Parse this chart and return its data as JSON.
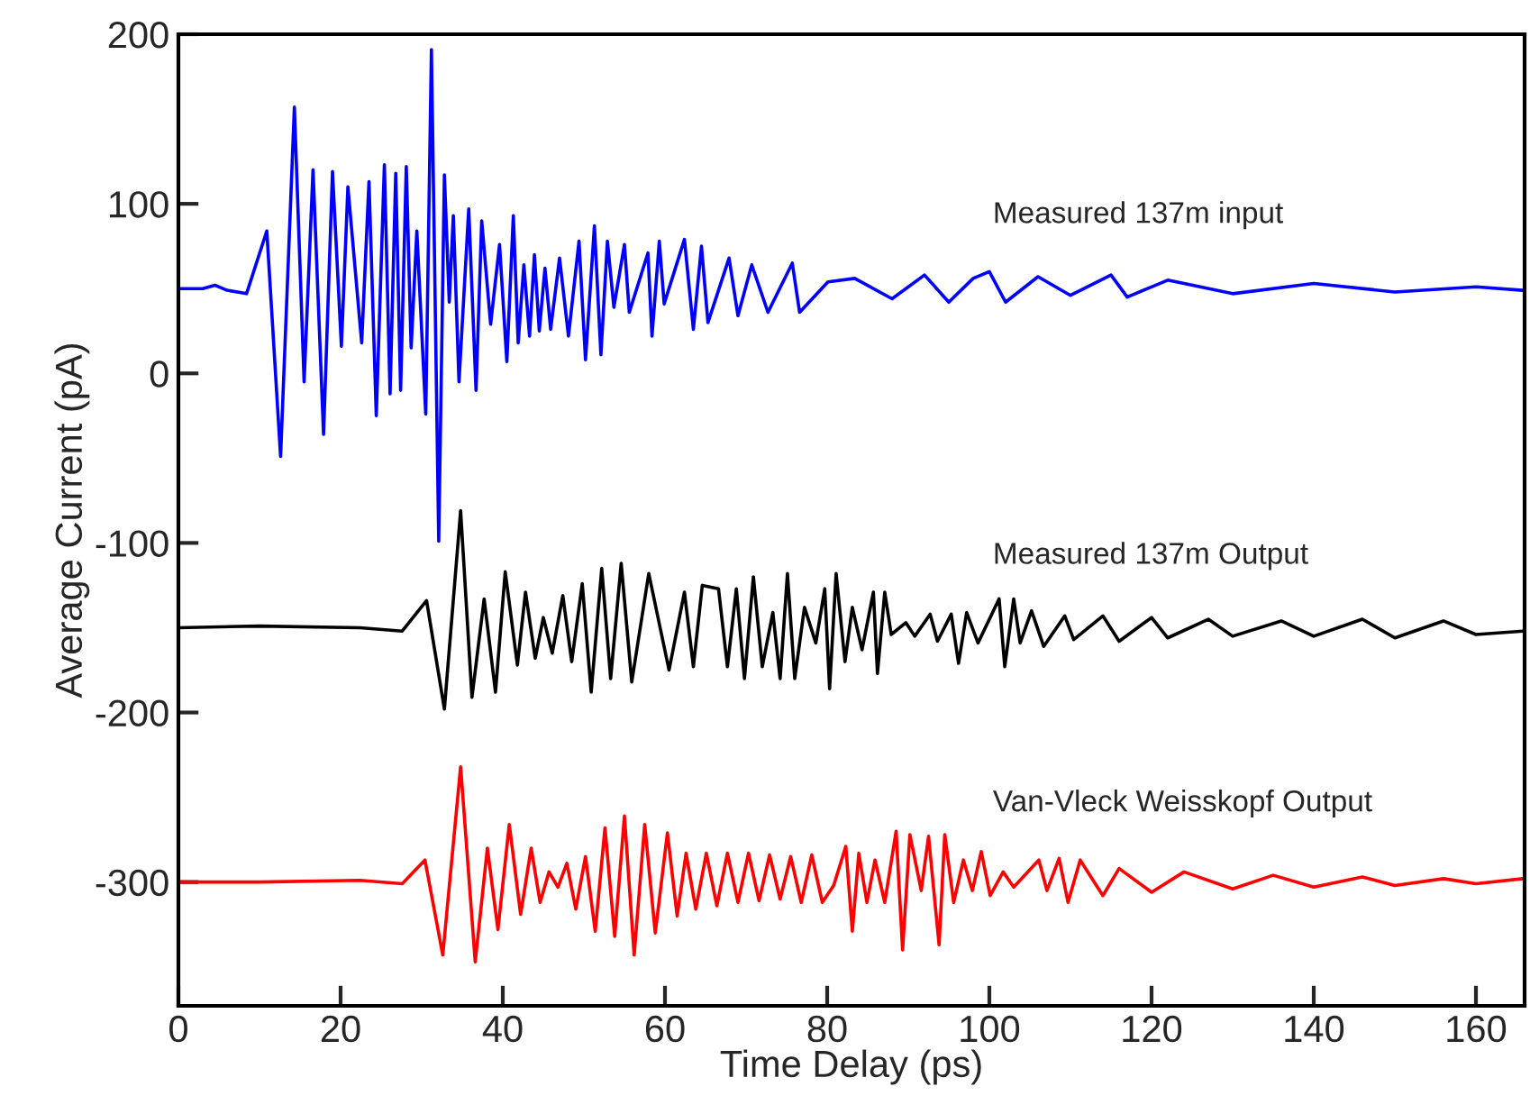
{
  "chart_data": {
    "type": "line",
    "xlabel": "Time Delay (ps)",
    "ylabel": "Average Current (pA)",
    "xlim": [
      0,
      166
    ],
    "ylim": [
      -373,
      200
    ],
    "xticks": [
      0,
      20,
      40,
      60,
      80,
      100,
      120,
      140,
      160
    ],
    "yticks": [
      -300,
      -200,
      -100,
      0,
      100,
      200
    ],
    "grid": false,
    "legend": false,
    "series": [
      {
        "name": "Measured 137m input",
        "color": "#0000ff",
        "x": [
          0.2,
          3,
          4.5,
          6,
          8.4,
          10.9,
          12.6,
          14.3,
          15.5,
          16.6,
          17.9,
          19.0,
          20.1,
          20.9,
          22.6,
          23.5,
          24.4,
          25.4,
          26.1,
          26.8,
          27.4,
          28.1,
          28.7,
          29.4,
          30.5,
          31.2,
          32.1,
          32.8,
          33.4,
          33.9,
          34.6,
          35.8,
          36.7,
          37.4,
          38.5,
          39.6,
          40.5,
          41.3,
          41.9,
          42.6,
          43.3,
          43.9,
          44.5,
          45.2,
          45.9,
          47.0,
          48.1,
          49.4,
          50.2,
          51.3,
          52.1,
          52.9,
          53.7,
          55.0,
          55.6,
          57.9,
          58.4,
          59.3,
          59.9,
          62.4,
          63.5,
          64.5,
          65.3,
          67.9,
          69.0,
          70.7,
          72.7,
          75.7,
          76.6,
          80.1,
          83.4,
          88,
          92,
          95,
          98,
          100,
          102,
          106,
          110,
          115,
          117,
          122,
          130,
          140,
          150,
          160,
          165.8
        ],
        "values": [
          50,
          50,
          52,
          49,
          47,
          84,
          -49,
          157,
          -5,
          120,
          -36,
          119,
          16,
          110,
          18,
          113,
          -25,
          123,
          -12,
          118,
          -10,
          122,
          15,
          84,
          -24,
          191,
          -99,
          117,
          42,
          93,
          -5,
          97,
          -10,
          90,
          29,
          76,
          7,
          93,
          18,
          64,
          22,
          70,
          25,
          62,
          26,
          68,
          22,
          78,
          8,
          87,
          11,
          78,
          39,
          76,
          36,
          71,
          22,
          78,
          41,
          79,
          26,
          75,
          30,
          68,
          34,
          64,
          36,
          65,
          36,
          54,
          56,
          44,
          58,
          42,
          56,
          60,
          42,
          57,
          46,
          58,
          45,
          55,
          47,
          53,
          48,
          51,
          49
        ]
      },
      {
        "name": "Measured 137m Output",
        "color": "#000000",
        "x": [
          0,
          10,
          22.4,
          27.6,
          30.6,
          32.8,
          34.8,
          36.2,
          37.7,
          39.1,
          40.3,
          41.8,
          42.8,
          44.0,
          45.0,
          46.1,
          47.4,
          48.5,
          49.8,
          50.9,
          52.2,
          53.3,
          54.6,
          55.9,
          58.0,
          60.5,
          62.4,
          63.5,
          64.6,
          66.6,
          67.7,
          68.8,
          69.8,
          70.9,
          72.0,
          73.3,
          74.2,
          75.1,
          76.0,
          77.2,
          78.6,
          79.7,
          80.3,
          81.1,
          82.2,
          83.1,
          84.3,
          85.7,
          86.2,
          87.1,
          87.9,
          89.7,
          90.8,
          92.7,
          93.6,
          95.3,
          96.2,
          97.2,
          98.6,
          101.2,
          101.9,
          103.0,
          103.8,
          105.2,
          106.7,
          109.3,
          110.4,
          114,
          116,
          120,
          122,
          127,
          130,
          136,
          140,
          146,
          150,
          156,
          160,
          165.8
        ],
        "values": [
          -150,
          -149,
          -150,
          -152,
          -134,
          -198,
          -81,
          -191,
          -133,
          -188,
          -117,
          -172,
          -129,
          -168,
          -144,
          -165,
          -131,
          -170,
          -124,
          -188,
          -115,
          -180,
          -112,
          -182,
          -118,
          -175,
          -129,
          -173,
          -125,
          -127,
          -173,
          -127,
          -180,
          -120,
          -173,
          -141,
          -180,
          -118,
          -180,
          -138,
          -159,
          -127,
          -186,
          -118,
          -170,
          -138,
          -163,
          -129,
          -177,
          -129,
          -154,
          -147,
          -155,
          -142,
          -158,
          -142,
          -171,
          -141,
          -159,
          -133,
          -173,
          -133,
          -159,
          -140,
          -161,
          -143,
          -157,
          -143,
          -158,
          -144,
          -156,
          -145,
          -155,
          -146,
          -155,
          -145,
          -156,
          -146,
          -154,
          -152
        ]
      },
      {
        "name": "Van-Vleck Weisskopf Output",
        "color": "#ff0000",
        "x": [
          0,
          10,
          22.4,
          27.6,
          30.4,
          32.6,
          34.8,
          36.6,
          38.1,
          39.4,
          40.8,
          42.2,
          43.5,
          44.6,
          45.7,
          46.8,
          47.9,
          49.0,
          50.2,
          51.4,
          52.6,
          53.8,
          55.0,
          56.2,
          57.5,
          58.8,
          60.3,
          61.5,
          62.6,
          63.8,
          65.1,
          66.4,
          67.7,
          69.0,
          70.3,
          71.6,
          72.9,
          74.2,
          75.5,
          76.8,
          78.1,
          79.4,
          80.8,
          82.3,
          83.1,
          83.9,
          84.9,
          85.9,
          87.1,
          88.5,
          89.3,
          90.2,
          91.6,
          92.5,
          93.8,
          94.5,
          95.6,
          96.8,
          97.9,
          99.0,
          100.1,
          101.7,
          103.0,
          106.1,
          107.1,
          108.6,
          109.7,
          111.2,
          114,
          116,
          120,
          124,
          130,
          135,
          140,
          146,
          150,
          156,
          160,
          165.8
        ],
        "values": [
          -300,
          -300,
          -299,
          -301,
          -287,
          -343,
          -232,
          -347,
          -280,
          -328,
          -266,
          -319,
          -280,
          -312,
          -294,
          -303,
          -289,
          -316,
          -285,
          -329,
          -268,
          -332,
          -261,
          -343,
          -266,
          -330,
          -271,
          -320,
          -283,
          -316,
          -283,
          -314,
          -283,
          -312,
          -283,
          -311,
          -284,
          -310,
          -285,
          -312,
          -284,
          -312,
          -302,
          -279,
          -329,
          -283,
          -312,
          -287,
          -312,
          -270,
          -340,
          -272,
          -305,
          -273,
          -337,
          -272,
          -312,
          -287,
          -305,
          -282,
          -308,
          -294,
          -303,
          -287,
          -305,
          -286,
          -312,
          -287,
          -308,
          -292,
          -306,
          -294,
          -304,
          -296,
          -303,
          -297,
          -302,
          -298,
          -301,
          -298
        ]
      }
    ]
  }
}
